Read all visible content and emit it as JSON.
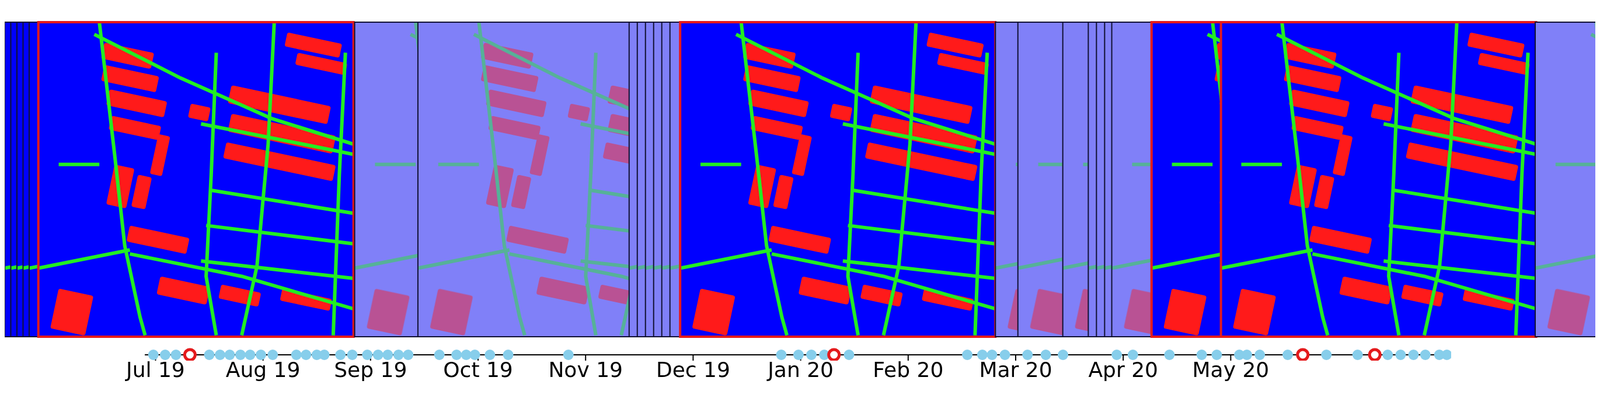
{
  "chart_data": {
    "type": "scatter",
    "xlim": [
      -0.1,
      12.05
    ],
    "xticks": [
      {
        "value": 0,
        "label": "Jul 19"
      },
      {
        "value": 1,
        "label": "Aug 19"
      },
      {
        "value": 2,
        "label": "Sep 19"
      },
      {
        "value": 3,
        "label": "Oct 19"
      },
      {
        "value": 4,
        "label": "Nov 19"
      },
      {
        "value": 5,
        "label": "Dec 19"
      },
      {
        "value": 6,
        "label": "Jan 20"
      },
      {
        "value": 7,
        "label": "Feb 20"
      },
      {
        "value": 8,
        "label": "Mar 20"
      },
      {
        "value": 9,
        "label": "Apr 20"
      },
      {
        "value": 10,
        "label": "May 20"
      }
    ],
    "tick_labels": "x",
    "series": [
      {
        "x": [
          -0.02,
          0.09,
          0.19,
          0.32,
          0.5,
          0.6,
          0.69,
          0.79,
          0.88,
          0.98,
          1.09,
          1.31,
          1.4,
          1.5,
          1.57,
          1.72,
          1.83,
          1.97,
          2.07,
          2.16,
          2.26,
          2.35,
          2.64,
          2.8,
          2.89,
          2.97,
          3.11,
          3.28,
          3.84,
          5.82,
          5.98,
          6.1,
          6.22,
          6.31,
          6.45,
          7.55,
          7.69,
          7.78,
          7.9,
          8.11,
          8.28,
          8.44,
          8.94,
          9.09,
          9.43,
          9.73,
          9.87,
          10.08,
          10.15,
          10.27,
          10.53,
          10.67,
          10.89,
          11.18,
          11.34,
          11.46,
          11.58,
          11.7,
          11.81,
          11.94,
          12.01
        ],
        "color": "#87ceeb",
        "marker": "circle"
      },
      {
        "x": [
          0.32,
          6.31,
          10.67,
          11.34
        ],
        "color": "#e41a1c",
        "marker": "ring"
      }
    ]
  }
}
